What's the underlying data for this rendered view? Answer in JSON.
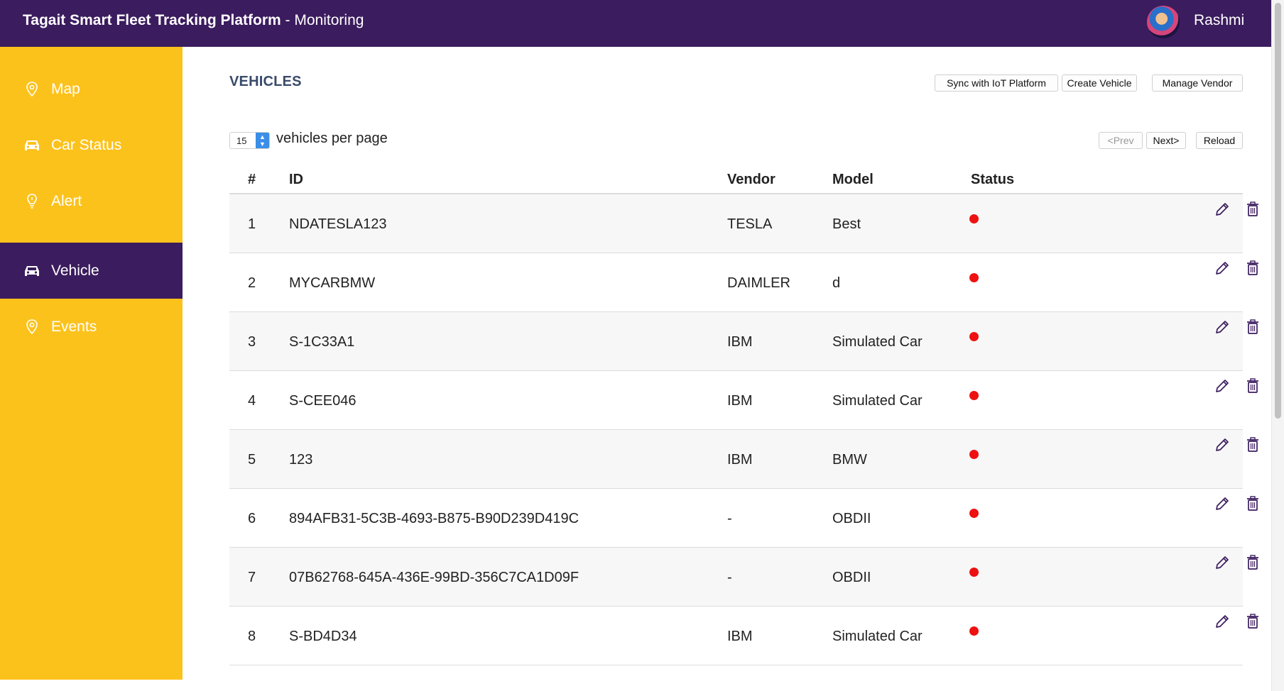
{
  "header": {
    "app_name": "Tagait Smart Fleet Tracking Platform",
    "section": " - Monitoring",
    "user_name": "Rashmi"
  },
  "sidebar": {
    "items": [
      {
        "label": "Map",
        "icon": "map-pin-icon",
        "active": false
      },
      {
        "label": "Car Status",
        "icon": "car-icon",
        "active": false
      },
      {
        "label": "Alert",
        "icon": "alert-bulb-icon",
        "active": false
      },
      {
        "label": "Vehicle",
        "icon": "car-icon",
        "active": true
      },
      {
        "label": "Events",
        "icon": "map-pin-icon",
        "active": false
      }
    ]
  },
  "main": {
    "title": "VEHICLES",
    "toolbar": {
      "sync_label": "Sync with IoT Platform",
      "create_label": "Create Vehicle",
      "manage_vendor_label": "Manage Vendor"
    },
    "pagination": {
      "per_page_value": "15",
      "per_page_label": "vehicles per page",
      "prev_label": "<Prev",
      "next_label": "Next>",
      "reload_label": "Reload"
    },
    "table": {
      "columns": {
        "num": "#",
        "id": "ID",
        "vendor": "Vendor",
        "model": "Model",
        "status": "Status"
      },
      "rows": [
        {
          "num": "1",
          "id": "NDATESLA123",
          "vendor": "TESLA",
          "model": "Best"
        },
        {
          "num": "2",
          "id": "MYCARBMW",
          "vendor": "DAIMLER",
          "model": "d"
        },
        {
          "num": "3",
          "id": "S-1C33A1",
          "vendor": "IBM",
          "model": "Simulated Car"
        },
        {
          "num": "4",
          "id": "S-CEE046",
          "vendor": "IBM",
          "model": "Simulated Car"
        },
        {
          "num": "5",
          "id": "123",
          "vendor": "IBM",
          "model": "BMW"
        },
        {
          "num": "6",
          "id": "894AFB31-5C3B-4693-B875-B90D239D419C",
          "vendor": "-",
          "model": "OBDII"
        },
        {
          "num": "7",
          "id": "07B62768-645A-436E-99BD-356C7CA1D09F",
          "vendor": "-",
          "model": "OBDII"
        },
        {
          "num": "8",
          "id": "S-BD4D34",
          "vendor": "IBM",
          "model": "Simulated Car"
        }
      ],
      "status_color": "#ee1111",
      "row_actions": [
        "edit-pencil-icon",
        "delete-trash-icon",
        "stats-chart-icon"
      ]
    }
  },
  "colors": {
    "header_bg": "#3b1c5e",
    "sidebar_bg": "#fcc21c",
    "sidebar_active_bg": "#3b1c5e",
    "accent_icon": "#3b1c5e"
  }
}
